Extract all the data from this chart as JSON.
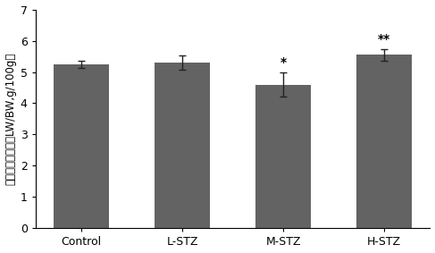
{
  "categories": [
    "Control",
    "L-STZ",
    "M-STZ",
    "H-STZ"
  ],
  "values": [
    5.25,
    5.3,
    4.6,
    5.55
  ],
  "errors": [
    0.12,
    0.22,
    0.38,
    0.18
  ],
  "bar_color": "#636363",
  "bar_width": 0.55,
  "ylabel": "各组小鼠肝指数（LW/BW,g/100g）",
  "ylim": [
    0,
    7
  ],
  "yticks": [
    0,
    1,
    2,
    3,
    4,
    5,
    6,
    7
  ],
  "significance": [
    "",
    "",
    "*",
    "**"
  ],
  "sig_fontsize": 10,
  "ylabel_fontsize": 8.5,
  "tick_fontsize": 9,
  "xtick_fontsize": 9,
  "background_color": "#ffffff",
  "error_capsize": 3,
  "error_linewidth": 1.0,
  "error_color": "#222222"
}
